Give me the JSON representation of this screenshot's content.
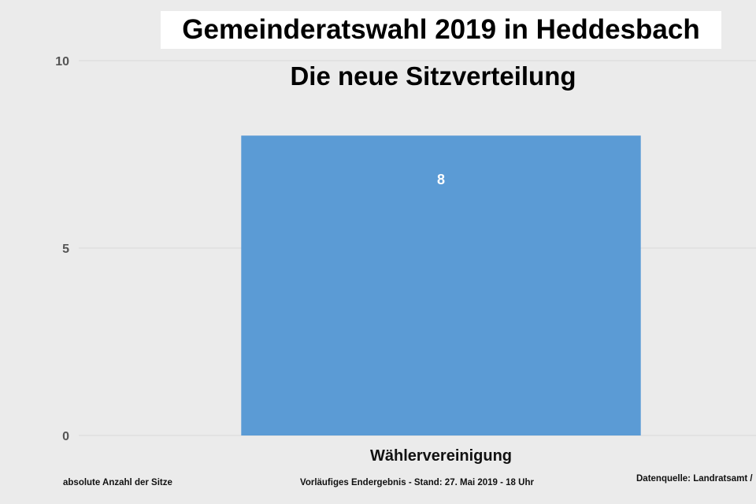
{
  "chart_data": {
    "type": "bar",
    "title": "Gemeinderatswahl 2019 in Heddesbach",
    "subtitle": "Die neue Sitzverteilung",
    "categories": [
      "Wählervereinigung"
    ],
    "values": [
      8
    ],
    "data_labels": [
      "8"
    ],
    "ylim": [
      0,
      10
    ],
    "yticks": [
      0,
      5,
      10
    ],
    "ytick_labels": [
      "0",
      "5",
      "10"
    ],
    "grid": true,
    "legend": "none",
    "colors": {
      "bar": "#5b9bd5",
      "background": "#ebebeb",
      "grid": "#d9d9d9"
    }
  },
  "footer": {
    "left": "absolute Anzahl der Sitze",
    "center": "Vorläufiges Endergebnis - Stand: 27. Mai 2019 - 18 Uhr",
    "right": "Datenquelle: Landratsamt /"
  }
}
